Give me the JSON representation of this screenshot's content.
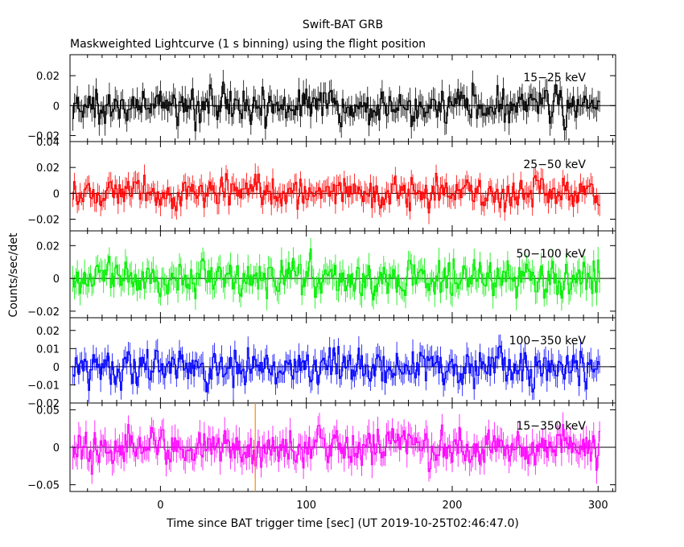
{
  "chart_data": {
    "type": "line",
    "title": "Swift-BAT GRB",
    "subtitle": "Maskweighted Lightcurve (1 s binning) using the flight position",
    "xlabel": "Time since BAT trigger time [sec] (UT 2019-10-25T02:46:47.0)",
    "ylabel": "Counts/sec/det",
    "xlim": [
      -62,
      312
    ],
    "x_ticks": [
      0,
      100,
      200,
      300
    ],
    "x_tick_labels": [
      "0",
      "100",
      "200",
      "300"
    ],
    "data_range": [
      -60,
      301
    ],
    "bin_seconds": 1,
    "trigger_marker": {
      "x": 65,
      "color": "#ff8800"
    },
    "panels": [
      {
        "name": "15−25 keV",
        "color": "#000000",
        "ylim": [
          -0.024,
          0.034
        ],
        "yticks": [
          -0.02,
          0,
          0.02
        ],
        "ytick_labels": [
          "−0.02",
          "0",
          "0.02"
        ],
        "noise": 0.0075,
        "extreme": 0.03
      },
      {
        "name": "25−50 keV",
        "color": "#ff0000",
        "ylim": [
          -0.029,
          0.04
        ],
        "yticks": [
          -0.02,
          0,
          0.02,
          0.04
        ],
        "ytick_labels": [
          "−0.02",
          "0",
          "0.02",
          "0.04"
        ],
        "noise": 0.0075,
        "extreme": 0.034
      },
      {
        "name": "50−100 keV",
        "color": "#00ee00",
        "ylim": [
          -0.024,
          0.029
        ],
        "yticks": [
          -0.02,
          0,
          0.02
        ],
        "ytick_labels": [
          "−0.02",
          "0",
          "0.02"
        ],
        "noise": 0.007,
        "extreme": 0.027
      },
      {
        "name": "100−350 keV",
        "color": "#0000ff",
        "ylim": [
          -0.02,
          0.027
        ],
        "yticks": [
          -0.02,
          -0.01,
          0,
          0.01,
          0.02
        ],
        "ytick_labels": [
          "−0.02",
          "−0.01",
          "0",
          "0.01",
          "0.02"
        ],
        "noise": 0.006,
        "extreme": 0.023
      },
      {
        "name": "15−350 keV",
        "color": "#ff00ff",
        "ylim": [
          -0.059,
          0.059
        ],
        "yticks": [
          -0.05,
          0,
          0.05
        ],
        "ytick_labels": [
          "−0.05",
          "0",
          "0.05"
        ],
        "noise": 0.016,
        "extreme": 0.057
      }
    ]
  }
}
